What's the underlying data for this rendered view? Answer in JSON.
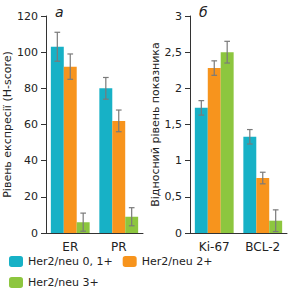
{
  "chart_data": [
    {
      "type": "bar",
      "title": "а",
      "y_label": "Рівень експресії (H-score)",
      "categories": [
        "ER",
        "PR"
      ],
      "series": [
        {
          "name": "Her2/neu 0, 1+",
          "color": "#17b1c6",
          "values": [
            103,
            80
          ],
          "errors": [
            8,
            6
          ]
        },
        {
          "name": "Her2/neu 2+",
          "color": "#f7941d",
          "values": [
            92,
            62
          ],
          "errors": [
            7,
            6
          ]
        },
        {
          "name": "Her2/neu 3+",
          "color": "#8dc63f",
          "values": [
            6,
            9
          ],
          "errors": [
            5,
            5
          ]
        }
      ],
      "ylim": [
        0,
        120
      ],
      "yticks": [
        0,
        20,
        40,
        60,
        80,
        100,
        120
      ],
      "grid": false,
      "legend": "bottom"
    },
    {
      "type": "bar",
      "title": "б",
      "y_label": "Відносний рівень показника",
      "categories": [
        "Ki-67",
        "BCL-2"
      ],
      "series": [
        {
          "name": "Her2/neu 0, 1+",
          "color": "#17b1c6",
          "values": [
            1.73,
            1.33
          ],
          "errors": [
            0.1,
            0.1
          ]
        },
        {
          "name": "Her2/neu 2+",
          "color": "#f7941d",
          "values": [
            2.28,
            0.76
          ],
          "errors": [
            0.1,
            0.08
          ]
        },
        {
          "name": "Her2/neu 3+",
          "color": "#8dc63f",
          "values": [
            2.5,
            0.17
          ],
          "errors": [
            0.15,
            0.15
          ]
        }
      ],
      "ylim": [
        0,
        3
      ],
      "yticks": [
        0,
        {
          "value": 0.5,
          "label": "0,5"
        },
        1,
        {
          "value": 1.5,
          "label": "1,5"
        },
        2,
        {
          "value": 2.5,
          "label": "2,5"
        },
        3
      ],
      "grid": false
    }
  ]
}
